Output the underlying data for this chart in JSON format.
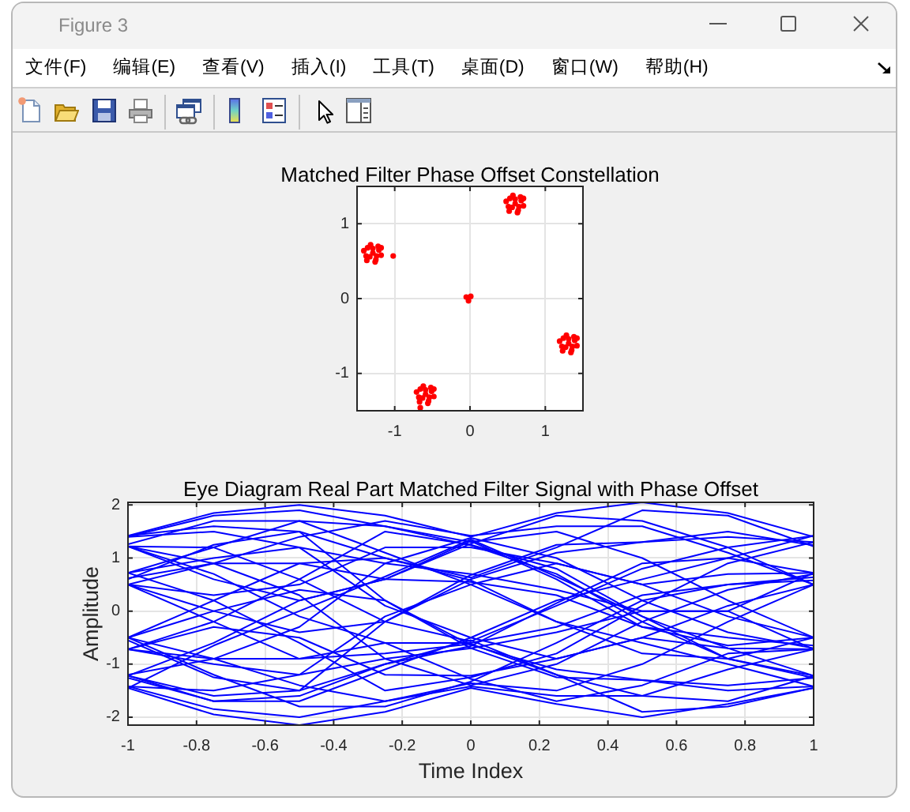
{
  "chart_data": [
    {
      "type": "other",
      "title": "Figure 3",
      "annotations": [
        "文件(F)",
        "编辑(E)",
        "查看(V)",
        "插入(I)",
        "工具(T)",
        "桌面(D)",
        "窗口(W)",
        "帮助(H)"
      ]
    },
    {
      "type": "scatter",
      "title": "Matched Filter Phase Offset Constellation",
      "color": "#ff0000",
      "marker": "circle",
      "grid": true,
      "xlim": [
        -1.5,
        1.5
      ],
      "ylim": [
        -1.5,
        1.5
      ],
      "xticks": [
        -1,
        0,
        1
      ],
      "yticks": [
        -1,
        0,
        1
      ],
      "x": [
        -1.29,
        -1.21,
        -1.36,
        -1.25,
        -1.38,
        -1.18,
        -1.32,
        -1.22,
        -1.37,
        -1.26,
        -1.41,
        -1.18,
        -1.29,
        -1.33,
        -1.24,
        0.6,
        0.68,
        0.53,
        0.64,
        0.51,
        0.71,
        0.57,
        0.67,
        0.52,
        0.63,
        0.48,
        0.71,
        0.6,
        0.56,
        0.65,
        1.31,
        1.39,
        1.24,
        1.35,
        1.22,
        1.42,
        1.28,
        1.38,
        1.23,
        1.34,
        1.19,
        1.42,
        1.31,
        1.27,
        1.36,
        -0.59,
        -0.51,
        -0.66,
        -0.55,
        -0.68,
        -0.48,
        -0.62,
        -0.52,
        -0.67,
        -0.56,
        -0.71,
        -0.48,
        -0.59,
        -0.63,
        -0.54,
        -0.05,
        0.01,
        -0.02,
        -1.02,
        -0.66
      ],
      "values": [
        0.61,
        0.65,
        0.68,
        0.52,
        0.57,
        0.58,
        0.72,
        0.7,
        0.51,
        0.49,
        0.64,
        0.68,
        0.67,
        0.56,
        0.57,
        1.27,
        1.31,
        1.34,
        1.18,
        1.23,
        1.24,
        1.38,
        1.36,
        1.17,
        1.15,
        1.3,
        1.34,
        1.33,
        1.22,
        1.23,
        -0.6,
        -0.56,
        -0.53,
        -0.69,
        -0.64,
        -0.63,
        -0.49,
        -0.51,
        -0.7,
        -0.72,
        -0.57,
        -0.53,
        -0.54,
        -0.65,
        -0.64,
        -1.28,
        -1.24,
        -1.21,
        -1.37,
        -1.32,
        -1.31,
        -1.17,
        -1.19,
        -1.38,
        -1.4,
        -1.25,
        -1.21,
        -1.22,
        -1.33,
        -1.32,
        0.02,
        0.03,
        -0.03,
        0.57,
        -1.46
      ]
    },
    {
      "type": "line",
      "title": "Eye Diagram Real Part Matched Filter Signal with Phase Offset",
      "xlabel": "Time Index",
      "ylabel": "Amplitude",
      "marker": "none",
      "grid": true,
      "xlim": [
        -1,
        1
      ],
      "ylim": [
        -2.15,
        2.05
      ],
      "xticks": [
        -1,
        -0.8,
        -0.6,
        -0.4,
        -0.2,
        0,
        0.2,
        0.4,
        0.6,
        0.8,
        1
      ],
      "yticks": [
        -2,
        -1,
        0,
        1,
        2
      ],
      "x": [
        -1,
        -0.75,
        -0.5,
        -0.25,
        0,
        0.25,
        0.5,
        0.75,
        1
      ],
      "series": [
        {
          "color": "#0000ff",
          "values": [
            1.42,
            1.85,
            2.0,
            1.8,
            1.4,
            1.85,
            2.05,
            1.85,
            1.4
          ]
        },
        {
          "color": "#0000ff",
          "values": [
            -1.45,
            -1.95,
            -2.15,
            -1.9,
            -1.45,
            -1.75,
            -2.0,
            -1.75,
            -1.45
          ]
        },
        {
          "color": "#0000ff",
          "values": [
            1.22,
            0.6,
            0.2,
            0.6,
            1.32,
            0.6,
            -0.3,
            -0.65,
            -0.5
          ]
        },
        {
          "color": "#0000ff",
          "values": [
            0.5,
            -0.2,
            -0.9,
            -0.8,
            -0.62,
            -1.2,
            -1.6,
            -1.7,
            -1.22
          ]
        },
        {
          "color": "#0000ff",
          "values": [
            -0.5,
            0.2,
            0.9,
            1.0,
            0.58,
            -0.2,
            -0.8,
            -0.9,
            -0.5
          ]
        },
        {
          "color": "#0000ff",
          "values": [
            -1.22,
            -0.6,
            0.2,
            0.6,
            1.27,
            1.8,
            1.7,
            1.2,
            0.5
          ]
        },
        {
          "color": "#0000ff",
          "values": [
            1.22,
            1.2,
            0.6,
            -0.2,
            -0.57,
            0.1,
            0.8,
            1.2,
            1.42
          ]
        },
        {
          "color": "#0000ff",
          "values": [
            -0.5,
            -1.2,
            -1.8,
            -1.8,
            -1.33,
            -0.6,
            0.2,
            0.5,
            0.64
          ]
        },
        {
          "color": "#0000ff",
          "values": [
            0.72,
            1.2,
            1.7,
            1.6,
            1.24,
            0.7,
            -0.2,
            -0.9,
            -1.22
          ]
        },
        {
          "color": "#0000ff",
          "values": [
            -1.22,
            -1.7,
            -1.6,
            -1.0,
            -0.66,
            0.15,
            0.9,
            1.0,
            0.72
          ]
        },
        {
          "color": "#0000ff",
          "values": [
            1.42,
            1.6,
            1.5,
            1.0,
            0.63,
            1.2,
            1.9,
            1.8,
            1.22
          ]
        },
        {
          "color": "#0000ff",
          "values": [
            -1.22,
            -1.6,
            -1.5,
            -1.0,
            -0.55,
            -1.2,
            -1.9,
            -1.8,
            -1.45
          ]
        },
        {
          "color": "#0000ff",
          "values": [
            0.5,
            0.0,
            -0.4,
            -0.2,
            0.6,
            1.1,
            1.3,
            1.4,
            1.3
          ]
        },
        {
          "color": "#0000ff",
          "values": [
            -0.5,
            0.0,
            0.4,
            0.2,
            -0.64,
            -1.1,
            -1.3,
            -1.4,
            -1.26
          ]
        },
        {
          "color": "#0000ff",
          "values": [
            1.22,
            0.7,
            -0.1,
            -0.6,
            -1.28,
            -1.7,
            -1.4,
            -0.8,
            -0.72
          ]
        },
        {
          "color": "#0000ff",
          "values": [
            -1.45,
            -0.65,
            0.0,
            0.65,
            1.35,
            0.65,
            -0.1,
            -0.7,
            -1.22
          ]
        },
        {
          "color": "#0000ff",
          "values": [
            0.62,
            0.9,
            0.9,
            0.6,
            0.55,
            0.3,
            -0.3,
            -0.5,
            -0.65
          ]
        },
        {
          "color": "#0000ff",
          "values": [
            -0.72,
            -0.9,
            -0.9,
            -0.6,
            -0.6,
            -0.3,
            0.3,
            0.5,
            0.58
          ]
        },
        {
          "color": "#0000ff",
          "values": [
            1.4,
            1.8,
            1.9,
            1.6,
            1.3,
            1.5,
            1.0,
            0.2,
            -0.5
          ]
        },
        {
          "color": "#0000ff",
          "values": [
            -1.42,
            -1.85,
            -2.0,
            -1.7,
            -1.36,
            -1.5,
            -1.0,
            -0.2,
            0.5
          ]
        },
        {
          "color": "#0000ff",
          "values": [
            0.6,
            1.25,
            1.5,
            0.2,
            -0.7,
            -1.25,
            -1.3,
            -1.5,
            -1.42
          ]
        },
        {
          "color": "#0000ff",
          "values": [
            -0.55,
            -1.25,
            -1.5,
            -0.2,
            0.68,
            1.25,
            1.3,
            1.5,
            1.24
          ]
        },
        {
          "color": "#0000ff",
          "values": [
            0.5,
            0.3,
            0.5,
            1.2,
            1.2,
            0.9,
            0.5,
            0.7,
            0.72
          ]
        },
        {
          "color": "#0000ff",
          "values": [
            -0.72,
            -0.3,
            -0.5,
            -1.2,
            -1.22,
            -0.9,
            -0.5,
            -0.7,
            -0.72
          ]
        },
        {
          "color": "#0000ff",
          "values": [
            1.22,
            0.9,
            0.3,
            -0.9,
            -1.4,
            -1.0,
            -0.2,
            0.4,
            0.7
          ]
        },
        {
          "color": "#0000ff",
          "values": [
            -1.2,
            -0.9,
            -0.3,
            0.9,
            1.38,
            1.0,
            0.2,
            -0.4,
            -0.7
          ]
        },
        {
          "color": "#0000ff",
          "values": [
            0.72,
            1.0,
            1.2,
            0.1,
            -0.5,
            -0.9,
            -0.5,
            0.1,
            0.5
          ]
        },
        {
          "color": "#0000ff",
          "values": [
            -0.72,
            -1.0,
            -1.2,
            -0.1,
            0.5,
            0.9,
            0.5,
            -0.1,
            -0.5
          ]
        },
        {
          "color": "#0000ff",
          "values": [
            1.4,
            1.5,
            1.2,
            0.9,
            0.7,
            0.4,
            0.0,
            0.0,
            -0.72
          ]
        },
        {
          "color": "#0000ff",
          "values": [
            -1.42,
            -1.5,
            -1.2,
            -0.9,
            -0.7,
            -0.4,
            0.0,
            0.0,
            0.72
          ]
        },
        {
          "color": "#0000ff",
          "values": [
            0.5,
            0.9,
            1.4,
            1.7,
            1.42,
            1.6,
            1.6,
            1.1,
            0.5
          ]
        },
        {
          "color": "#0000ff",
          "values": [
            -0.5,
            -0.9,
            -1.4,
            -1.7,
            -1.42,
            -1.6,
            -1.6,
            -1.1,
            -0.72
          ]
        },
        {
          "color": "#0000ff",
          "values": [
            1.26,
            1.7,
            1.7,
            1.1,
            0.5,
            -0.2,
            -0.6,
            -1.0,
            -1.42
          ]
        },
        {
          "color": "#0000ff",
          "values": [
            -1.26,
            -1.7,
            -1.7,
            -1.1,
            -0.5,
            0.2,
            0.6,
            1.0,
            1.42
          ]
        },
        {
          "color": "#0000ff",
          "values": [
            0.72,
            0.2,
            -0.6,
            -1.5,
            -1.25,
            -0.8,
            0.1,
            0.9,
            1.3
          ]
        },
        {
          "color": "#0000ff",
          "values": [
            -0.72,
            -0.2,
            0.6,
            1.5,
            1.25,
            0.8,
            -0.1,
            -0.9,
            -1.26
          ]
        }
      ]
    }
  ]
}
